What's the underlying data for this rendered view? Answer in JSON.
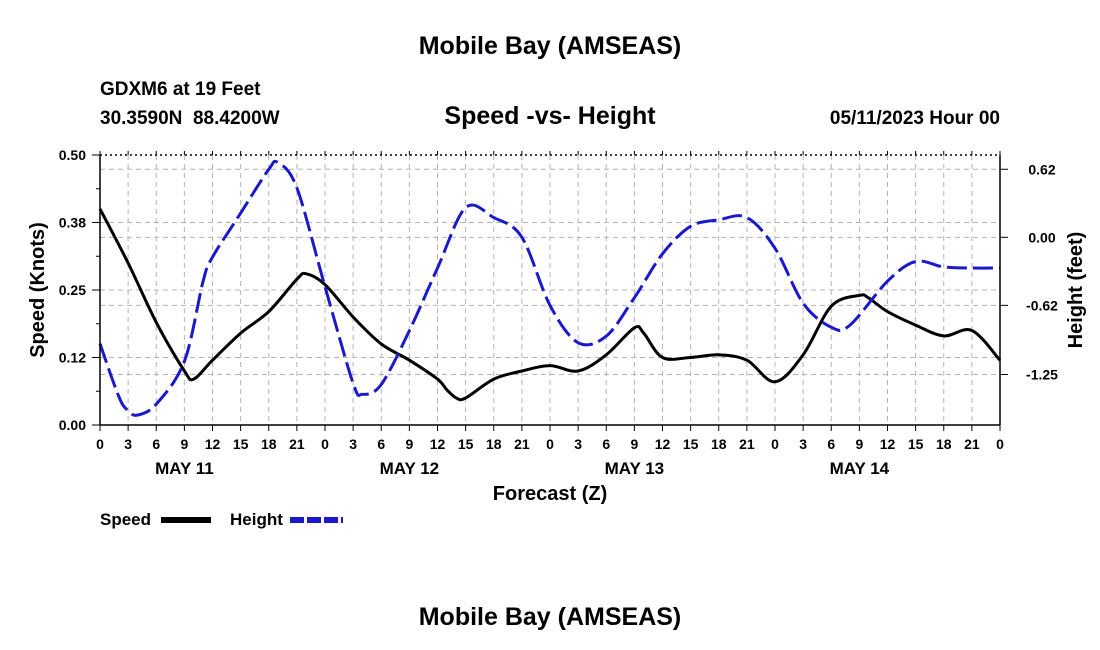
{
  "chart_data": {
    "type": "line",
    "site_title": "Mobile Bay (AMSEAS)",
    "footer_title": "Mobile Bay (AMSEAS)",
    "station_line": "GDXM6 at 19 Feet",
    "coords_line": "30.3590N  88.4200W",
    "title": "Speed -vs- Height",
    "date_label": "05/11/2023 Hour 00",
    "xlabel": "Forecast (Z)",
    "ylabel_left": "Speed (Knots)",
    "ylabel_right": "Height (feet)",
    "xlim": [
      0,
      96
    ],
    "ylim_left": [
      0,
      0.5
    ],
    "ylim_right": [
      -1.71,
      0.75
    ],
    "x_tick_labels": [
      "0",
      "3",
      "6",
      "9",
      "12",
      "15",
      "18",
      "21",
      "0",
      "3",
      "6",
      "9",
      "12",
      "15",
      "18",
      "21",
      "0",
      "3",
      "6",
      "9",
      "12",
      "15",
      "18",
      "21",
      "0",
      "3",
      "6",
      "9",
      "12",
      "15",
      "18",
      "21",
      "0"
    ],
    "day_labels": [
      {
        "label": "MAY 11",
        "hour": 9
      },
      {
        "label": "MAY 12",
        "hour": 33
      },
      {
        "label": "MAY 13",
        "hour": 57
      },
      {
        "label": "MAY 14",
        "hour": 81
      }
    ],
    "y_ticks_left": [
      "0.00",
      "0.12",
      "0.25",
      "0.38",
      "0.50"
    ],
    "y_ticks_left_values": [
      0,
      0.125,
      0.25,
      0.375,
      0.5
    ],
    "y_ticks_right": [
      "-1.25",
      "-0.62",
      "0.00",
      "0.62"
    ],
    "y_ticks_right_values": [
      -1.25,
      -0.62,
      0.0,
      0.62
    ],
    "series": [
      {
        "name": "Speed",
        "axis": "left",
        "color": "#000000",
        "dash": "solid",
        "x": [
          0,
          3,
          6,
          9,
          10,
          12,
          15,
          18,
          21,
          22,
          24,
          27,
          30,
          33,
          36,
          37,
          38,
          39,
          42,
          45,
          48,
          51,
          54,
          57,
          58,
          60,
          63,
          66,
          69,
          72,
          75,
          78,
          81,
          82,
          84,
          87,
          90,
          93,
          96
        ],
        "values": [
          0.4,
          0.3,
          0.19,
          0.1,
          0.085,
          0.12,
          0.17,
          0.21,
          0.27,
          0.28,
          0.26,
          0.2,
          0.15,
          0.12,
          0.085,
          0.065,
          0.05,
          0.05,
          0.085,
          0.1,
          0.11,
          0.1,
          0.13,
          0.18,
          0.17,
          0.125,
          0.125,
          0.13,
          0.12,
          0.08,
          0.13,
          0.22,
          0.24,
          0.235,
          0.21,
          0.185,
          0.165,
          0.175,
          0.12
        ]
      },
      {
        "name": "Height",
        "axis": "right",
        "color": "#1a1acc",
        "dash": "dashed",
        "x": [
          0,
          2,
          3,
          4,
          6,
          9,
          11,
          12,
          15,
          18,
          19,
          21,
          24,
          27,
          28,
          30,
          33,
          36,
          39,
          42,
          45,
          48,
          51,
          54,
          57,
          60,
          63,
          66,
          69,
          72,
          75,
          78,
          80,
          84,
          87,
          90,
          93,
          96
        ],
        "values": [
          -0.97,
          -1.45,
          -1.58,
          -1.62,
          -1.52,
          -1.13,
          -0.4,
          -0.18,
          0.22,
          0.62,
          0.68,
          0.45,
          -0.45,
          -1.33,
          -1.43,
          -1.34,
          -0.85,
          -0.28,
          0.27,
          0.18,
          0.0,
          -0.62,
          -0.96,
          -0.9,
          -0.55,
          -0.15,
          0.1,
          0.16,
          0.18,
          -0.1,
          -0.6,
          -0.82,
          -0.8,
          -0.4,
          -0.22,
          -0.27,
          -0.28,
          -0.28
        ]
      }
    ],
    "legend": [
      {
        "label": "Speed",
        "color": "#000000"
      },
      {
        "label": "Height",
        "color": "#1a1acc"
      }
    ]
  }
}
